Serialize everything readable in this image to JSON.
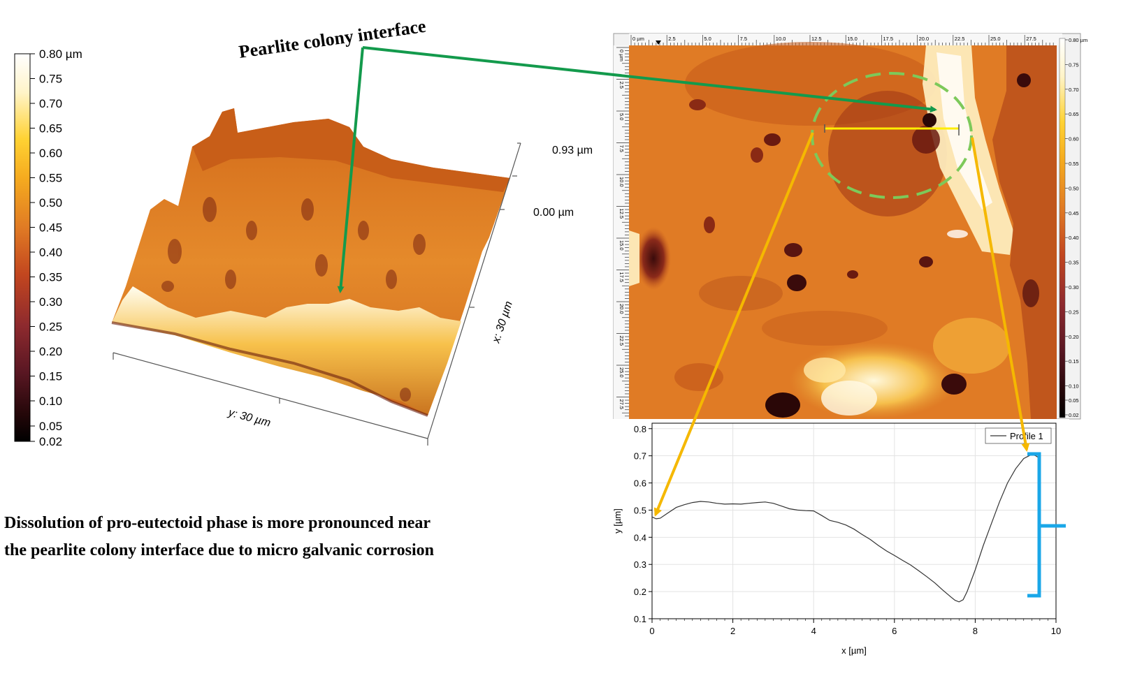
{
  "callout": {
    "label": "Pearlite colony interface"
  },
  "caption": {
    "line1": "Dissolution of pro-eutectoid phase is more pronounced near",
    "line2": "the pearlite colony interface due to micro galvanic corrosion"
  },
  "colorbar_left": {
    "ticks": [
      "0.80 µm",
      "0.75",
      "0.70",
      "0.65",
      "0.60",
      "0.55",
      "0.50",
      "0.45",
      "0.40",
      "0.35",
      "0.30",
      "0.25",
      "0.20",
      "0.15",
      "0.10",
      "0.05",
      "0.02"
    ]
  },
  "surface3d": {
    "z_max": "0.93 µm",
    "z_min": "0.00 µm",
    "x_axis": "x: 30 µm",
    "y_axis": "y: 30 µm"
  },
  "afm_map": {
    "x_ticks": [
      "0 µm",
      "2.5",
      "5.0",
      "7.5",
      "10.0",
      "12.5",
      "15.0",
      "17.5",
      "20.0",
      "22.5",
      "25.0",
      "27.5"
    ],
    "y_ticks": [
      "0 µm",
      "2.5",
      "5.0",
      "7.5",
      "10.0",
      "12.5",
      "15.0",
      "17.5",
      "20.0",
      "22.5",
      "25.0",
      "27.5"
    ],
    "colorbar_ticks": [
      "0.80 µm",
      "0.75",
      "0.70",
      "0.65",
      "0.60",
      "0.55",
      "0.50",
      "0.45",
      "0.40",
      "0.35",
      "0.30",
      "0.25",
      "0.20",
      "0.15",
      "0.10",
      "0.05",
      "0.02"
    ]
  },
  "colors": {
    "green_arrow": "#139a4c",
    "yellow_arrow": "#f5b800",
    "circle": "#7dc95a",
    "bracket": "#1aa7e8",
    "profile_line": "#ffee00"
  },
  "chart_data": {
    "type": "line",
    "xlabel": "x [µm]",
    "ylabel": "y [µm]",
    "xlim": [
      0,
      10
    ],
    "ylim": [
      0.1,
      0.82
    ],
    "x_ticks": [
      "0",
      "2",
      "4",
      "6",
      "8",
      "10"
    ],
    "y_ticks": [
      "0.1",
      "0.2",
      "0.3",
      "0.4",
      "0.5",
      "0.6",
      "0.7",
      "0.8"
    ],
    "grid": true,
    "legend_position": "top-right",
    "series": [
      {
        "name": "Profile 1",
        "x": [
          0,
          0.1,
          0.2,
          0.4,
          0.6,
          0.8,
          1.0,
          1.2,
          1.4,
          1.6,
          1.8,
          2.0,
          2.2,
          2.4,
          2.6,
          2.8,
          3.0,
          3.2,
          3.4,
          3.6,
          3.8,
          4.0,
          4.2,
          4.4,
          4.6,
          4.8,
          5.0,
          5.2,
          5.4,
          5.6,
          5.8,
          6.0,
          6.2,
          6.4,
          6.6,
          6.8,
          7.0,
          7.2,
          7.4,
          7.5,
          7.6,
          7.7,
          7.8,
          8.0,
          8.2,
          8.4,
          8.6,
          8.8,
          9.0,
          9.2,
          9.4,
          9.5,
          9.6
        ],
        "y": [
          0.475,
          0.468,
          0.47,
          0.49,
          0.51,
          0.52,
          0.528,
          0.532,
          0.53,
          0.525,
          0.522,
          0.523,
          0.522,
          0.525,
          0.528,
          0.53,
          0.525,
          0.515,
          0.505,
          0.5,
          0.498,
          0.497,
          0.48,
          0.462,
          0.455,
          0.445,
          0.43,
          0.41,
          0.392,
          0.37,
          0.35,
          0.333,
          0.315,
          0.298,
          0.277,
          0.255,
          0.232,
          0.205,
          0.18,
          0.168,
          0.162,
          0.17,
          0.2,
          0.28,
          0.37,
          0.45,
          0.53,
          0.6,
          0.652,
          0.69,
          0.705,
          0.7,
          0.69
        ]
      }
    ]
  }
}
